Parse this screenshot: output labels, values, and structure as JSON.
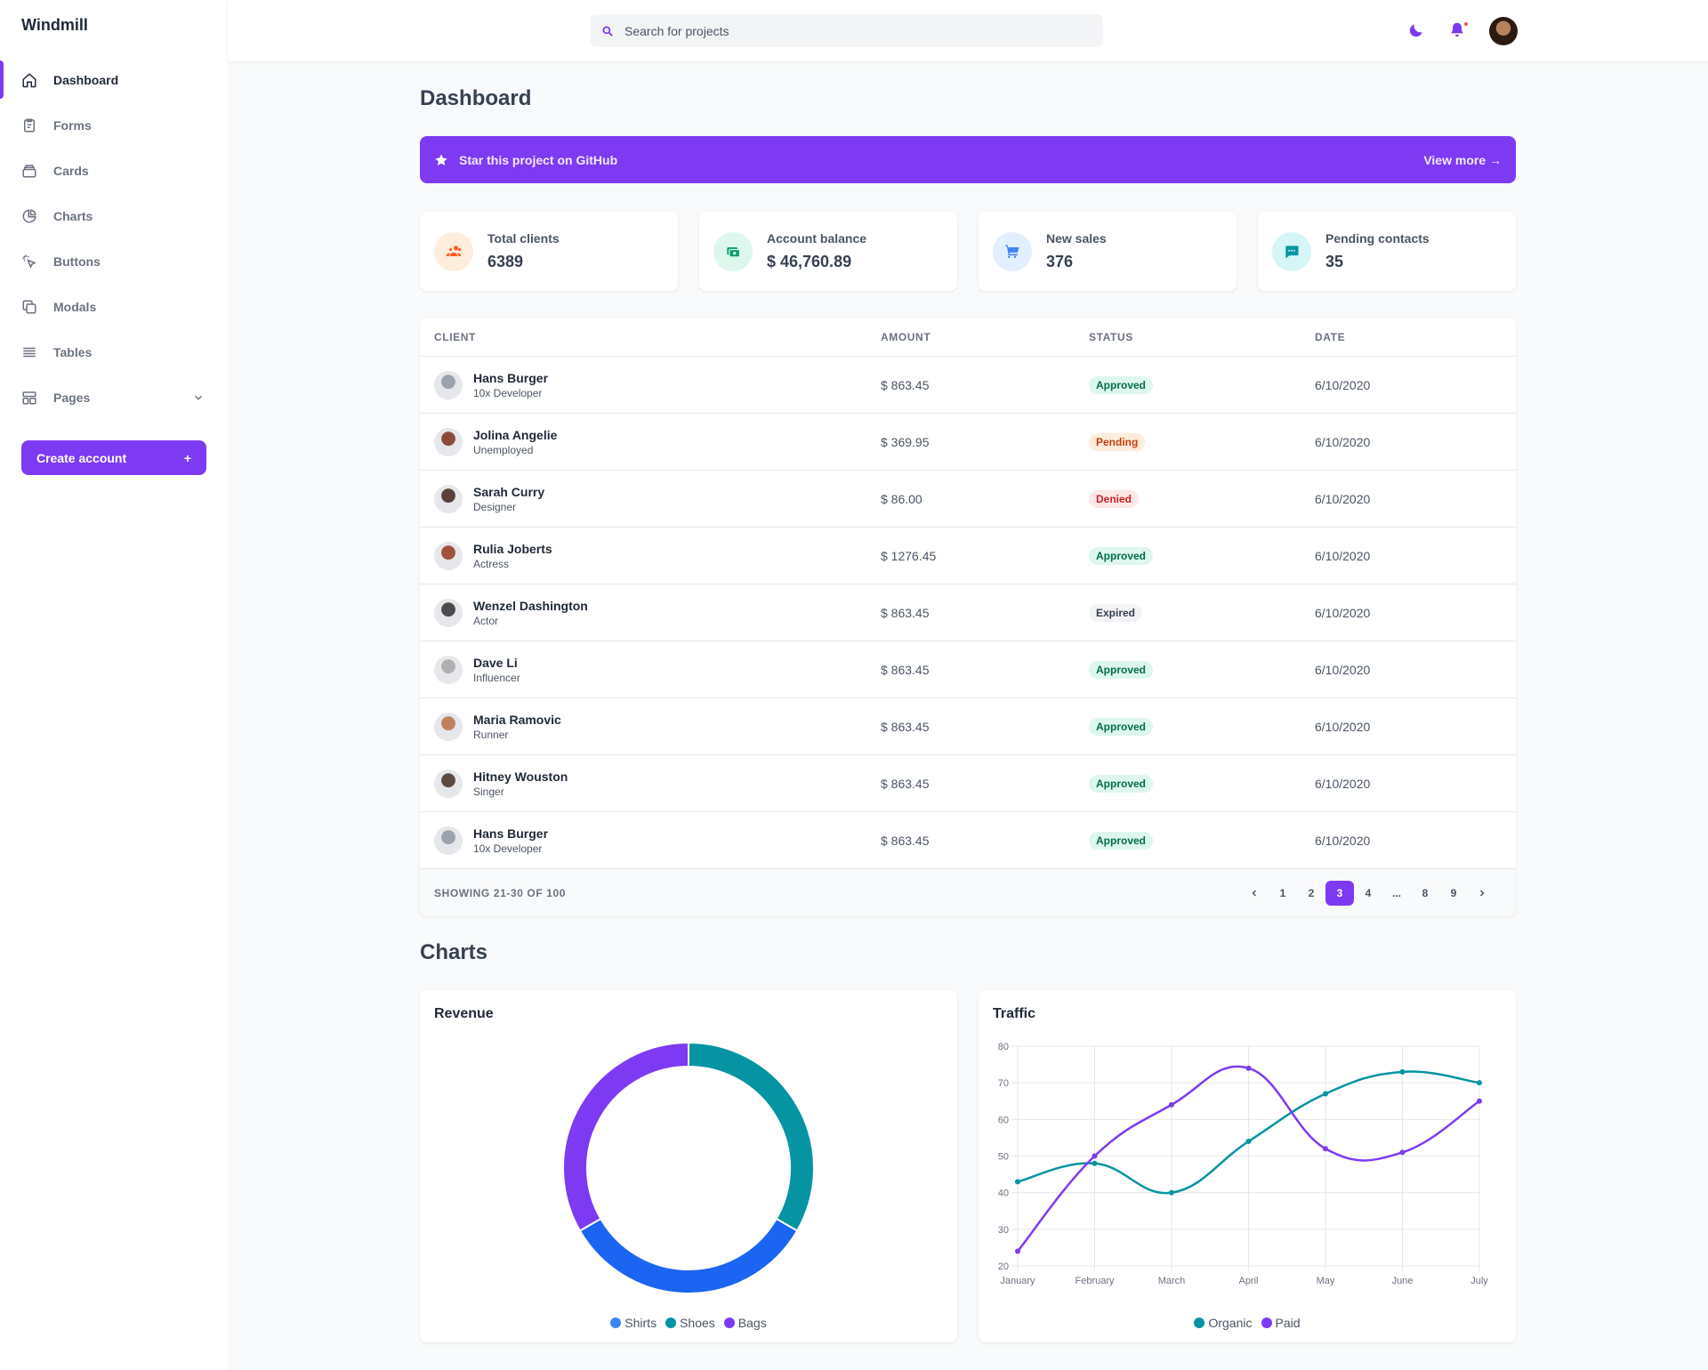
{
  "app": {
    "name": "Windmill"
  },
  "sidebar": {
    "items": [
      {
        "label": "Dashboard",
        "icon": "home-icon",
        "active": true
      },
      {
        "label": "Forms",
        "icon": "clipboard-icon"
      },
      {
        "label": "Cards",
        "icon": "cards-icon"
      },
      {
        "label": "Charts",
        "icon": "pie-chart-icon"
      },
      {
        "label": "Buttons",
        "icon": "cursor-click-icon"
      },
      {
        "label": "Modals",
        "icon": "copy-icon"
      },
      {
        "label": "Tables",
        "icon": "menu-lines-icon"
      },
      {
        "label": "Pages",
        "icon": "template-icon",
        "has_submenu": true
      }
    ],
    "create_account": {
      "label": "Create account",
      "icon": "+"
    }
  },
  "header": {
    "search": {
      "placeholder": "Search for projects",
      "value": ""
    }
  },
  "page": {
    "title": "Dashboard"
  },
  "banner": {
    "text": "Star this project on GitHub",
    "link": "View more →"
  },
  "stats": [
    {
      "label": "Total clients",
      "value": "6389",
      "icon": "users-icon",
      "color": "#ff5a1f",
      "bg": "#feecdc"
    },
    {
      "label": "Account balance",
      "value": "$ 46,760.89",
      "icon": "money-icon",
      "color": "#0e9f6e",
      "bg": "#def7ec"
    },
    {
      "label": "New sales",
      "value": "376",
      "icon": "cart-icon",
      "color": "#3f83f8",
      "bg": "#e1effe"
    },
    {
      "label": "Pending contacts",
      "value": "35",
      "icon": "chat-icon",
      "color": "#0694a2",
      "bg": "#d5f5f6"
    }
  ],
  "table": {
    "headers": [
      "Client",
      "Amount",
      "Status",
      "Date"
    ],
    "rows": [
      {
        "name": "Hans Burger",
        "role": "10x Developer",
        "amount": "$ 863.45",
        "status": "Approved",
        "date": "6/10/2020",
        "avatar": "#9ca3af"
      },
      {
        "name": "Jolina Angelie",
        "role": "Unemployed",
        "amount": "$ 369.95",
        "status": "Pending",
        "date": "6/10/2020",
        "avatar": "#8b4a3a"
      },
      {
        "name": "Sarah Curry",
        "role": "Designer",
        "amount": "$ 86.00",
        "status": "Denied",
        "date": "6/10/2020",
        "avatar": "#5a4038"
      },
      {
        "name": "Rulia Joberts",
        "role": "Actress",
        "amount": "$ 1276.45",
        "status": "Approved",
        "date": "6/10/2020",
        "avatar": "#a0523d"
      },
      {
        "name": "Wenzel Dashington",
        "role": "Actor",
        "amount": "$ 863.45",
        "status": "Expired",
        "date": "6/10/2020",
        "avatar": "#4b4b4b"
      },
      {
        "name": "Dave Li",
        "role": "Influencer",
        "amount": "$ 863.45",
        "status": "Approved",
        "date": "6/10/2020",
        "avatar": "#b0b0b0"
      },
      {
        "name": "Maria Ramovic",
        "role": "Runner",
        "amount": "$ 863.45",
        "status": "Approved",
        "date": "6/10/2020",
        "avatar": "#c08060"
      },
      {
        "name": "Hitney Wouston",
        "role": "Singer",
        "amount": "$ 863.45",
        "status": "Approved",
        "date": "6/10/2020",
        "avatar": "#5b4a40"
      },
      {
        "name": "Hans Burger",
        "role": "10x Developer",
        "amount": "$ 863.45",
        "status": "Approved",
        "date": "6/10/2020",
        "avatar": "#9ca3af"
      }
    ],
    "footer": {
      "showing": "SHOWING 21-30 OF 100",
      "pages": [
        "1",
        "2",
        "3",
        "4",
        "...",
        "8",
        "9"
      ],
      "current_page": "3"
    }
  },
  "charts_section": {
    "title": "Charts"
  },
  "chart_data": [
    {
      "type": "pie",
      "title": "Revenue",
      "labels": [
        "Shirts",
        "Shoes",
        "Bags"
      ],
      "values": [
        33,
        33,
        33
      ],
      "colors": [
        "#1c64f2",
        "#0694a2",
        "#7e3af2"
      ],
      "legend": "bottom"
    },
    {
      "type": "line",
      "title": "Traffic",
      "categories": [
        "January",
        "February",
        "March",
        "April",
        "May",
        "June",
        "July"
      ],
      "series": [
        {
          "name": "Organic",
          "values": [
            43,
            48,
            40,
            54,
            67,
            73,
            70
          ],
          "color": "#0694a2"
        },
        {
          "name": "Paid",
          "values": [
            24,
            50,
            64,
            74,
            52,
            51,
            65
          ],
          "color": "#7e3af2"
        }
      ],
      "ylim": [
        20,
        80
      ],
      "yticks": [
        20,
        30,
        40,
        50,
        60,
        70,
        80
      ],
      "grid": true,
      "legend": "bottom"
    }
  ]
}
